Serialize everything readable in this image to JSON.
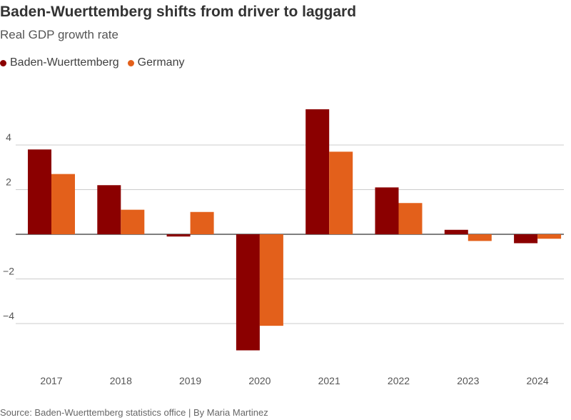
{
  "chart_data": {
    "type": "bar",
    "title": "Baden-Wuerttemberg shifts from driver to laggard",
    "subtitle": "Real GDP growth rate",
    "categories": [
      "2017",
      "2018",
      "2019",
      "2020",
      "2021",
      "2022",
      "2023",
      "2024"
    ],
    "series": [
      {
        "name": "Baden-Wuerttemberg",
        "color": "#8b0000",
        "values": [
          3.8,
          2.2,
          -0.1,
          -5.2,
          5.6,
          2.1,
          0.2,
          -0.4
        ]
      },
      {
        "name": "Germany",
        "color": "#e3601b",
        "values": [
          2.7,
          1.1,
          1.0,
          -4.1,
          3.7,
          1.4,
          -0.3,
          -0.2
        ]
      }
    ],
    "yticks": [
      4,
      2,
      0,
      -2,
      -4
    ],
    "ytick_labels": [
      "4",
      "2",
      "",
      "−2",
      "−4"
    ],
    "ylim": [
      -6.2,
      6.2
    ],
    "xlabel": "",
    "ylabel": "",
    "grid": true,
    "legend_position": "top-left"
  },
  "source": "Source: Baden-Wuerttemberg statistics office | By Maria Martinez"
}
